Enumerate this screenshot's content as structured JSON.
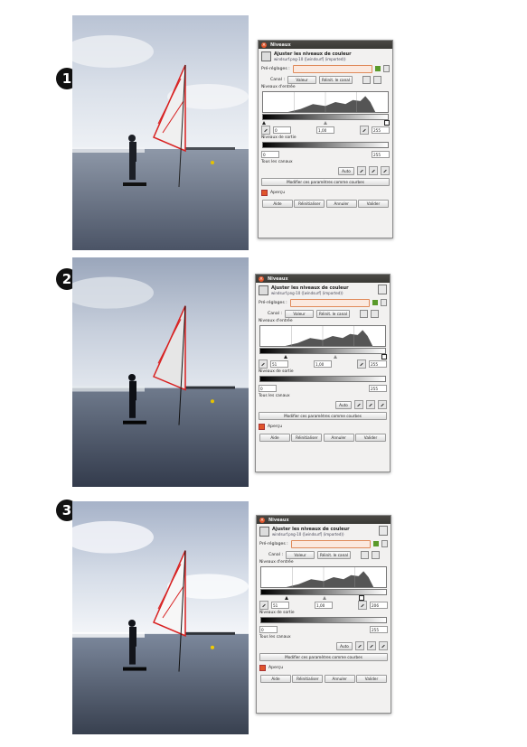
{
  "steps": [
    {
      "number": "1"
    },
    {
      "number": "2"
    },
    {
      "number": "3"
    }
  ],
  "dialog": {
    "title": "Niveaux",
    "header_title": "Ajuster les niveaux de couleur",
    "header_subtitle": "windsurf.png-10 ([windsurf] (imported))",
    "presets_label": "Pré-réglages :",
    "channel_label": "Canal :",
    "channel_value": "Valeur",
    "reset_channel": "Réinit. le canal",
    "input_levels": "Niveaux d'entrée",
    "output_levels": "Niveaux de sortie",
    "all_channels": "Tous les canaux",
    "auto_button": "Auto",
    "edit_curves": "Modifier ces paramètres comme courbes",
    "preview": "Aperçu",
    "buttons": {
      "help": "Aide",
      "reset": "Réinitialiser",
      "cancel": "Annuler",
      "validate": "Valider"
    }
  },
  "dialogs": [
    {
      "input_low": "0",
      "gamma": "1,00",
      "input_high": "255",
      "output_low": "0",
      "output_high": "255",
      "low_pos": 0.0,
      "mid_pos": 0.5,
      "high_pos": 1.0
    },
    {
      "input_low": "51",
      "gamma": "1,00",
      "input_high": "255",
      "output_low": "0",
      "output_high": "255",
      "low_pos": 0.2,
      "mid_pos": 0.6,
      "high_pos": 1.0
    },
    {
      "input_low": "51",
      "gamma": "1,00",
      "input_high": "206",
      "output_low": "0",
      "output_high": "255",
      "low_pos": 0.2,
      "mid_pos": 0.51,
      "high_pos": 0.81
    }
  ],
  "colors": {
    "titlebar": "#3c3b37",
    "accent": "#e0552b",
    "sail_red": "#d82020"
  }
}
